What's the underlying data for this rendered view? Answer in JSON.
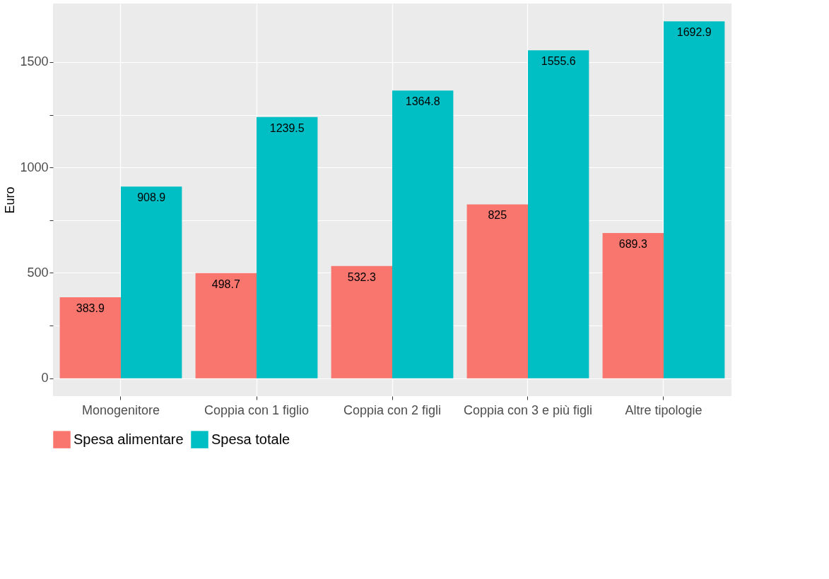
{
  "chart_data": {
    "type": "bar",
    "ylabel": "Euro",
    "categories": [
      "Monogenitore",
      "Coppia con 1 figlio",
      "Coppia con 2 figli",
      "Coppia con 3 e più figli",
      "Altre tipologie"
    ],
    "series": [
      {
        "name": "Spesa alimentare",
        "color": "#f8766d",
        "values": [
          383.9,
          498.7,
          532.3,
          825,
          689.3
        ]
      },
      {
        "name": "Spesa totale",
        "color": "#00bfc4",
        "values": [
          908.9,
          1239.5,
          1364.8,
          1555.6,
          1692.9
        ]
      }
    ],
    "ylim": [
      -84.6,
      1777.5
    ],
    "yticks": [
      0,
      {
        "value": 250,
        "label": null
      },
      500,
      {
        "value": 750,
        "label": null
      },
      1000,
      {
        "value": 1250,
        "label": null
      },
      1500
    ],
    "grid": true,
    "legend": "bottom",
    "data_labels": true
  }
}
